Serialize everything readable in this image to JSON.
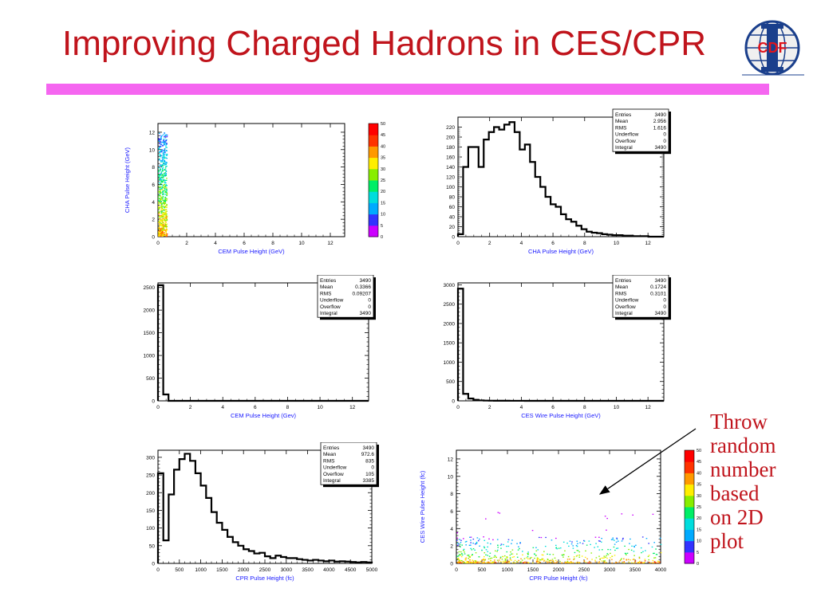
{
  "slide": {
    "title": "Improving Charged Hadrons in CES/CPR",
    "logo_text": "CDF",
    "annotation_lines": [
      "Throw",
      "random",
      "number",
      "based",
      "on 2D",
      "plot"
    ],
    "colors": {
      "title": "#c0141c",
      "bar": "#f566f0",
      "logo_text": "#e0141c",
      "logo_globe": "#1a3f8c",
      "hist_line": "#000000",
      "axis_label": "#1a1aff"
    }
  },
  "chart_data": [
    {
      "id": "p1",
      "type": "heatmap",
      "xlabel": "CEM Pulse Height (GeV)",
      "ylabel": "CHA Pulse Height (GeV)",
      "xlim": [
        0,
        13
      ],
      "ylim": [
        0,
        13
      ],
      "xticks": [
        0,
        2,
        4,
        6,
        8,
        10,
        12
      ],
      "yticks": [
        0,
        2,
        4,
        6,
        8,
        10,
        12
      ],
      "colorbar": {
        "range": [
          0,
          50
        ],
        "ticks": [
          0,
          5,
          10,
          15,
          20,
          25,
          30,
          35,
          40,
          45,
          50
        ]
      },
      "cluster": {
        "x_range": [
          0.0,
          0.6
        ],
        "y_range": [
          0.0,
          12.5
        ]
      }
    },
    {
      "id": "p2",
      "type": "bar",
      "xlabel": "CHA Pulse Height (GeV)",
      "ylabel": "",
      "xlim": [
        0,
        13
      ],
      "ylim": [
        0,
        240
      ],
      "xticks": [
        0,
        2,
        4,
        6,
        8,
        10,
        12
      ],
      "yticks": [
        0,
        20,
        40,
        60,
        80,
        100,
        120,
        140,
        160,
        180,
        200,
        220
      ],
      "bin_width": 0.325,
      "x_start": 0,
      "values": [
        5,
        140,
        180,
        180,
        140,
        195,
        210,
        220,
        215,
        225,
        230,
        210,
        175,
        185,
        150,
        120,
        100,
        80,
        65,
        60,
        45,
        35,
        30,
        22,
        15,
        10,
        8,
        7,
        5,
        4,
        3,
        3,
        2,
        2,
        1,
        1,
        1,
        0,
        0,
        0
      ],
      "stats": [
        [
          "Entries",
          "3490"
        ],
        [
          "Mean",
          "2.956"
        ],
        [
          "RMS",
          "1.616"
        ],
        [
          "Underflow",
          "0"
        ],
        [
          "Overflow",
          "0"
        ],
        [
          "Integral",
          "3490"
        ]
      ]
    },
    {
      "id": "p3",
      "type": "bar",
      "xlabel": "CEM Pulse Height (Gev)",
      "ylabel": "",
      "xlim": [
        0,
        13
      ],
      "ylim": [
        0,
        2600
      ],
      "xticks": [
        0,
        2,
        4,
        6,
        8,
        10,
        12
      ],
      "yticks": [
        0,
        500,
        1000,
        1500,
        2000,
        2500
      ],
      "bin_width": 0.325,
      "x_start": 0,
      "values": [
        2550,
        140,
        0,
        0,
        0,
        0,
        0,
        0,
        0,
        0,
        0,
        0,
        0,
        0,
        0,
        0,
        0,
        0,
        0,
        0,
        0,
        0,
        0,
        0,
        0,
        0,
        0,
        0,
        0,
        0,
        0,
        0,
        0,
        0,
        0,
        0,
        0,
        0,
        0,
        0
      ],
      "stats": [
        [
          "Entries",
          "3490"
        ],
        [
          "Mean",
          "0.3366"
        ],
        [
          "RMS",
          "0.09207"
        ],
        [
          "Underflow",
          "0"
        ],
        [
          "Overflow",
          "0"
        ],
        [
          "Integral",
          "3490"
        ]
      ]
    },
    {
      "id": "p4",
      "type": "bar",
      "xlabel": "CES Wire Pulse Height (GeV)",
      "ylabel": "",
      "xlim": [
        0,
        13
      ],
      "ylim": [
        0,
        3050
      ],
      "xticks": [
        0,
        2,
        4,
        6,
        8,
        10,
        12
      ],
      "yticks": [
        0,
        500,
        1000,
        1500,
        2000,
        2500,
        3000
      ],
      "bin_width": 0.325,
      "x_start": 0,
      "values": [
        2900,
        180,
        60,
        25,
        12,
        6,
        4,
        3,
        2,
        2,
        1,
        1,
        1,
        0,
        0,
        0,
        0,
        0,
        0,
        0,
        0,
        0,
        0,
        0,
        0,
        0,
        0,
        0,
        0,
        0,
        0,
        0,
        0,
        0,
        0,
        0,
        0,
        0,
        0,
        0
      ],
      "stats": [
        [
          "Entries",
          "3490"
        ],
        [
          "Mean",
          "0.1724"
        ],
        [
          "RMS",
          "0.3101"
        ],
        [
          "Underflow",
          "0"
        ],
        [
          "Overflow",
          "0"
        ],
        [
          "Integral",
          "3490"
        ]
      ]
    },
    {
      "id": "p5",
      "type": "bar",
      "xlabel": "CPR Pulse Height (fc)",
      "ylabel": "",
      "xlim": [
        0,
        5000
      ],
      "ylim": [
        0,
        320
      ],
      "xticks": [
        0,
        500,
        1000,
        1500,
        2000,
        2500,
        3000,
        3500,
        4000,
        4500,
        5000
      ],
      "yticks": [
        0,
        50,
        100,
        150,
        200,
        250,
        300
      ],
      "bin_width": 125,
      "x_start": 0,
      "values": [
        255,
        65,
        195,
        265,
        295,
        310,
        290,
        255,
        220,
        185,
        145,
        115,
        95,
        75,
        60,
        50,
        40,
        35,
        28,
        30,
        20,
        15,
        22,
        18,
        15,
        15,
        12,
        10,
        8,
        10,
        8,
        6,
        8,
        5,
        6,
        5,
        4,
        3,
        4,
        3
      ],
      "stats": [
        [
          "Entries",
          "3490"
        ],
        [
          "Mean",
          "972.6"
        ],
        [
          "RMS",
          "835"
        ],
        [
          "Underflow",
          "0"
        ],
        [
          "Overflow",
          "105"
        ],
        [
          "Integral",
          "3385"
        ]
      ]
    },
    {
      "id": "p6",
      "type": "heatmap",
      "xlabel": "CPR Pulse Height (fc)",
      "ylabel": "CES Wire Pulse Height (fc)",
      "xlim": [
        0,
        4000
      ],
      "ylim": [
        0,
        13
      ],
      "xticks": [
        0,
        500,
        1000,
        1500,
        2000,
        2500,
        3000,
        3500,
        4000
      ],
      "yticks": [
        0,
        2,
        4,
        6,
        8,
        10,
        12
      ],
      "colorbar": {
        "range": [
          0,
          50
        ],
        "ticks": [
          0,
          5,
          10,
          15,
          20,
          25,
          30,
          35,
          40,
          45,
          50
        ]
      },
      "cluster": {
        "x_range": [
          0,
          4000
        ],
        "y_range": [
          0,
          3
        ]
      }
    }
  ]
}
